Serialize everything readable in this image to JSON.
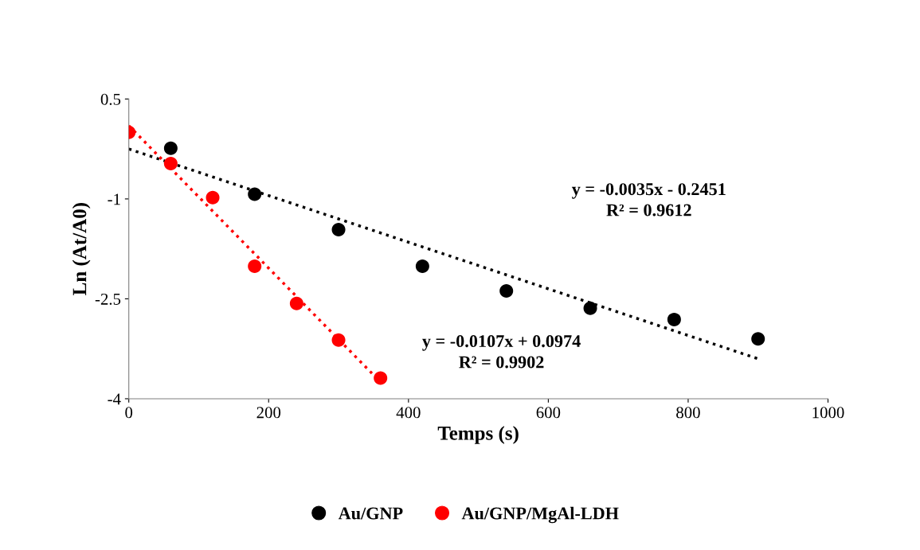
{
  "chart_data": {
    "type": "scatter",
    "xlabel": "Temps (s)",
    "ylabel": "Ln (At/A0)",
    "xlim": [
      0,
      1000
    ],
    "xticks": [
      0,
      200,
      400,
      600,
      800,
      1000
    ],
    "ylim": [
      -4,
      0.5
    ],
    "yticks": [
      -4,
      -2.5,
      -1,
      0.5
    ],
    "grid": false,
    "legend": "bottom",
    "marker": "circle",
    "series": [
      {
        "name": "Au/GNP",
        "color": "#000000",
        "x": [
          60,
          180,
          300,
          420,
          540,
          660,
          780,
          900
        ],
        "values": [
          -0.24,
          -0.93,
          -1.46,
          -2.01,
          -2.38,
          -2.64,
          -2.81,
          -3.1
        ]
      },
      {
        "name": "Au/GNP/MgAl-LDH",
        "color": "#ff0000",
        "x": [
          0,
          60,
          120,
          180,
          240,
          300,
          360
        ],
        "values": [
          0.0,
          -0.47,
          -0.98,
          -2.01,
          -2.57,
          -3.12,
          -3.69
        ]
      },
      {
        "type": "line",
        "color": "#000000",
        "line_style": "dotted",
        "marker": "none",
        "x": [
          0,
          900
        ],
        "values": [
          -0.25,
          -3.4
        ]
      },
      {
        "type": "line",
        "color": "#ff0000",
        "line_style": "dotted",
        "marker": "none",
        "x": [
          0,
          360
        ],
        "values": [
          0.1,
          -3.75
        ]
      }
    ],
    "annotations": [
      "y = -0.0035x - 0.2451\nR² = 0.9612",
      "y = -0.0107x + 0.0974\nR² = 0.9902"
    ]
  }
}
